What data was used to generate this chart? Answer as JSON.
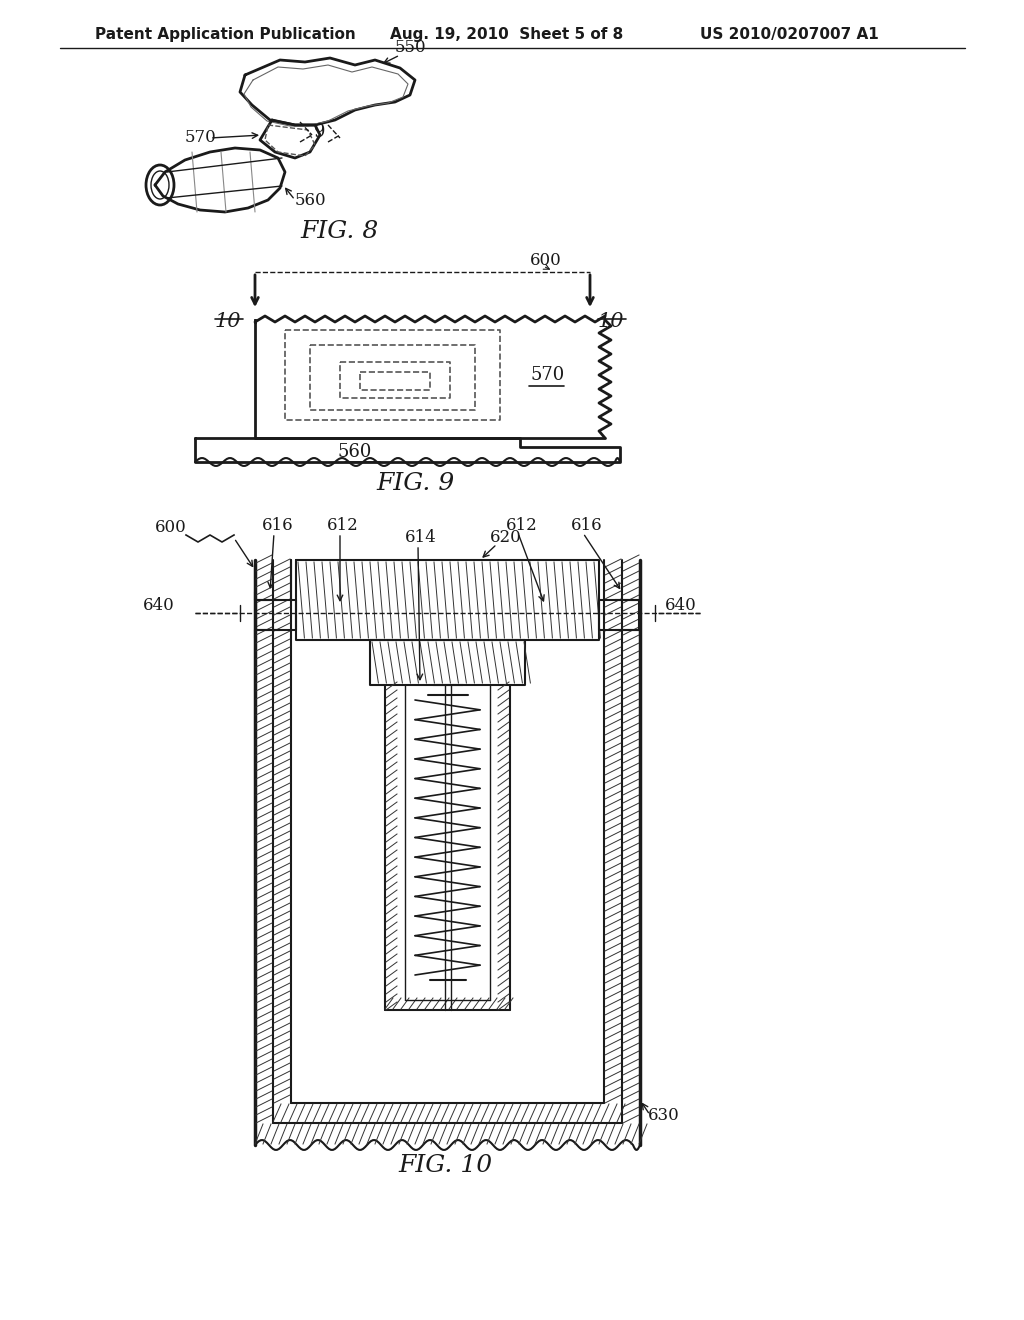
{
  "bg_color": "#ffffff",
  "line_color": "#1a1a1a",
  "header_text": "Patent Application Publication",
  "header_date": "Aug. 19, 2010  Sheet 5 of 8",
  "header_patent": "US 2010/0207007 A1",
  "fig8_label": "FIG. 8",
  "fig9_label": "FIG. 9",
  "fig10_label": "FIG. 10",
  "font_size_header": 11,
  "font_size_fig": 18,
  "font_size_ref": 12
}
